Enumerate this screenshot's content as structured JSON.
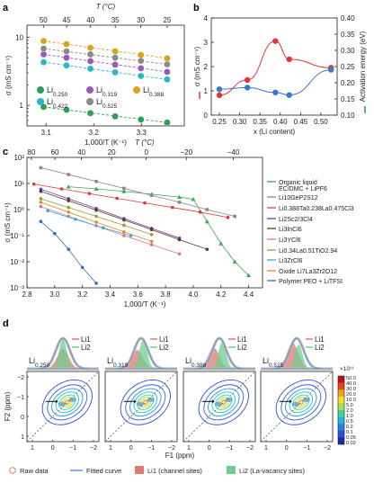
{
  "panels": {
    "a": {
      "label": "a"
    },
    "b": {
      "label": "b"
    },
    "c": {
      "label": "c"
    },
    "d": {
      "label": "d"
    }
  },
  "chart_data": [
    {
      "panel": "a",
      "type": "scatter",
      "xlabel": "1,000/T (K⁻¹)",
      "ylabel": "σ (mS cm⁻¹)",
      "top_axis_label": "T (°C)",
      "xlim": [
        3.06,
        3.39
      ],
      "ylim": [
        0.5,
        15
      ],
      "yscale": "log",
      "xticks": [
        "3.1",
        "3.2",
        "3.3"
      ],
      "yticks": [
        "1",
        "10"
      ],
      "top_ticks": [
        "50",
        "45",
        "40",
        "35",
        "30",
        "25"
      ],
      "series": [
        {
          "name": "Li0.250",
          "color": "#2e9e57",
          "x": [
            3.095,
            3.143,
            3.193,
            3.245,
            3.299,
            3.354
          ],
          "y": [
            0.95,
            0.86,
            0.77,
            0.69,
            0.62,
            0.56
          ]
        },
        {
          "name": "Li0.319",
          "color": "#9b59b6",
          "x": [
            3.095,
            3.143,
            3.193,
            3.245,
            3.299,
            3.354
          ],
          "y": [
            5.6,
            5.0,
            4.45,
            3.95,
            3.5,
            3.1
          ]
        },
        {
          "name": "Li0.388",
          "color": "#d9a21b",
          "x": [
            3.095,
            3.143,
            3.193,
            3.245,
            3.299,
            3.354
          ],
          "y": [
            8.8,
            7.9,
            7.0,
            6.2,
            5.5,
            4.9
          ]
        },
        {
          "name": "Li0.422",
          "color": "#2bb5c9",
          "x": [
            3.095,
            3.143,
            3.193,
            3.245,
            3.299,
            3.354
          ],
          "y": [
            4.3,
            3.85,
            3.45,
            3.05,
            2.7,
            2.4
          ]
        },
        {
          "name": "Li0.525",
          "color": "#8a8a8a",
          "x": [
            3.095,
            3.143,
            3.193,
            3.245,
            3.299,
            3.354
          ],
          "y": [
            6.8,
            6.2,
            5.6,
            5.0,
            4.5,
            4.0
          ]
        }
      ],
      "legend": [
        {
          "text": "Li",
          "sub": "0.250"
        },
        {
          "text": "Li",
          "sub": "0.319"
        },
        {
          "text": "Li",
          "sub": "0.388"
        },
        {
          "text": "Li",
          "sub": "0.422"
        },
        {
          "text": "Li",
          "sub": "0.525"
        }
      ]
    },
    {
      "panel": "b",
      "type": "line",
      "xlabel": "x (Li content)",
      "ylabel": "σ (mS cm⁻¹)",
      "y2label": "Activation energy (eV)",
      "xlim": [
        0.23,
        0.54
      ],
      "ylim": [
        0,
        4
      ],
      "y2lim": [
        0.1,
        0.4
      ],
      "xticks": [
        "0.25",
        "0.30",
        "0.35",
        "0.40",
        "0.45",
        "0.50",
        "0.55"
      ],
      "yticks": [
        "0",
        "1",
        "2",
        "3",
        "4"
      ],
      "y2ticks": [
        "0.10",
        "0.15",
        "0.20",
        "0.25",
        "0.30",
        "0.35",
        "0.40"
      ],
      "series": [
        {
          "name": "σ",
          "color": "#e0373a",
          "x": [
            0.25,
            0.319,
            0.388,
            0.422,
            0.525
          ],
          "y": [
            0.82,
            1.45,
            3.05,
            2.3,
            1.95
          ]
        },
        {
          "name": "Activation energy",
          "color": "#3a78c9",
          "x": [
            0.25,
            0.319,
            0.388,
            0.422,
            0.525
          ],
          "y": [
            0.18,
            0.185,
            0.17,
            0.162,
            0.24
          ]
        }
      ]
    },
    {
      "panel": "c",
      "type": "scatter",
      "xlabel": "1,000/T (K⁻¹)",
      "ylabel": "σ (mS cm⁻¹)",
      "top_axis_label": "T (°C)",
      "xlim": [
        2.8,
        4.5
      ],
      "yscale": "log",
      "ylim": [
        0.001,
        100
      ],
      "xticks": [
        "2.8",
        "3.0",
        "3.2",
        "3.4",
        "3.6",
        "3.8",
        "4.0",
        "4.2",
        "4.4"
      ],
      "yticks": [
        "10⁻³",
        "10⁻²",
        "10⁻¹",
        "10⁰",
        "10¹",
        "10²"
      ],
      "top_ticks": [
        "80",
        "60",
        "40",
        "20",
        "0",
        "−20",
        "−40"
      ],
      "series": [
        {
          "name": "Organic liquid EC/DMC + LiPF6",
          "color": "#3aa856",
          "x": [
            3.1,
            3.3,
            3.5,
            3.7,
            3.9,
            4.0,
            4.1,
            4.2,
            4.3,
            4.4
          ],
          "y": [
            7.5,
            6.2,
            5.0,
            3.9,
            3.0,
            2.5,
            0.35,
            0.05,
            0.01,
            0.003
          ]
        },
        {
          "name": "Li10GeP2S12",
          "color": "#8a8a8a",
          "x": [
            2.9,
            3.1,
            3.3,
            3.5,
            3.7,
            3.9,
            4.1,
            4.3
          ],
          "y": [
            40,
            22,
            12,
            6.5,
            3.5,
            1.9,
            1.0,
            0.55
          ]
        },
        {
          "name": "Li0.388Ta0.238La0.475Cl3",
          "color": "#e0373a",
          "x": [
            2.85,
            3.05,
            3.25,
            3.45,
            3.65,
            3.85,
            4.05,
            4.25
          ],
          "y": [
            9.5,
            6.2,
            4.1,
            2.7,
            1.8,
            1.2,
            0.8,
            0.5
          ]
        },
        {
          "name": "Li2Sc2/3Cl4",
          "color": "#6b3fa0",
          "x": [
            2.9,
            3.1,
            3.3,
            3.5,
            3.7,
            3.9
          ],
          "y": [
            6.0,
            2.6,
            1.1,
            0.45,
            0.19,
            0.08
          ]
        },
        {
          "name": "Li3InCl6",
          "color": "#5a3a2a",
          "x": [
            2.9,
            3.1,
            3.3,
            3.5,
            3.7,
            3.9,
            4.1
          ],
          "y": [
            5.0,
            2.2,
            0.95,
            0.4,
            0.17,
            0.07,
            0.03
          ]
        },
        {
          "name": "Li3YCl6",
          "color": "#d96fb0",
          "x": [
            2.9,
            3.1,
            3.3,
            3.5,
            3.7,
            3.9
          ],
          "y": [
            1.3,
            0.55,
            0.24,
            0.1,
            0.045,
            0.02
          ]
        },
        {
          "name": "Li0.34La0.51TiO2.94",
          "color": "#9a9a3a",
          "x": [
            2.9,
            3.1,
            3.3,
            3.5,
            3.7
          ],
          "y": [
            2.6,
            1.2,
            0.55,
            0.25,
            0.11
          ]
        },
        {
          "name": "Li3ZrCl6",
          "color": "#2bb5c9",
          "x": [
            2.95,
            3.15,
            3.35,
            3.55
          ],
          "y": [
            0.9,
            0.42,
            0.2,
            0.1
          ]
        },
        {
          "name": "Oxide Li7La3Zr2O12",
          "color": "#e08a2a",
          "x": [
            2.9,
            3.1,
            3.3,
            3.5,
            3.7
          ],
          "y": [
            1.9,
            0.8,
            0.33,
            0.14,
            0.06
          ]
        },
        {
          "name": "Polymer PEO + LiTFSI",
          "color": "#2f6fc2",
          "x": [
            2.9,
            3.0,
            3.1,
            3.2,
            3.3
          ],
          "y": [
            0.35,
            0.12,
            0.03,
            0.006,
            0.0015
          ]
        }
      ],
      "legend": [
        {
          "text": "Organic liquid"
        },
        {
          "text": "EC/DMC + LiPF6"
        },
        {
          "text": "Li10GeP2S12"
        },
        {
          "text": "Li0.388Ta0.238La0.475Cl3"
        },
        {
          "text": "Li2Sc2/3Cl4"
        },
        {
          "text": "Li3InCl6"
        },
        {
          "text": "Li3YCl6"
        },
        {
          "text": "Li0.34La0.51TiO2.94"
        },
        {
          "text": "Li3ZrCl6"
        },
        {
          "text": "Oxide Li7La3Zr2O12"
        },
        {
          "text": "Polymer PEO + LiTFSI"
        }
      ]
    },
    {
      "panel": "d",
      "type": "heatmap",
      "xlabel": "F1 (ppm)",
      "ylabel": "F2 (ppm)",
      "xticks": [
        "1",
        "0",
        "−1",
        "−2"
      ],
      "yticks": [
        "−2",
        "−1",
        "0",
        "1"
      ],
      "colorbar": {
        "label": "×10¹¹",
        "ticks": [
          "50.0",
          "40.0",
          "30.0",
          "20.0",
          "10.0",
          "5.0",
          "2.0",
          "1.0",
          "0.5",
          "0.2",
          "0.1",
          "0.05",
          "0.02"
        ]
      },
      "subpanels": [
        "Li0.250",
        "Li0.319",
        "Li0.388",
        "Li0.525"
      ],
      "peak_labels": [
        "Li1",
        "Li2"
      ],
      "legend": [
        "Raw data",
        "Fitted curve",
        "Li1 (channel sites)",
        "Li2 (La-vacancy sites)"
      ]
    }
  ],
  "colors": {
    "li1": "#e07a72",
    "li2": "#6fcf8f",
    "raw": "#b8b8b8",
    "fit": "#3a78c9"
  }
}
